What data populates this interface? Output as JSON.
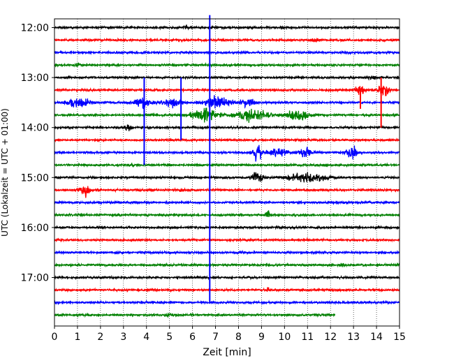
{
  "chart_data": {
    "type": "line",
    "subtype": "helicorder",
    "xlabel": "Zeit  [min]",
    "ylabel": "UTC (Lokalzeit = UTC + 01:00)",
    "xlim": [
      0,
      15
    ],
    "x_ticks": [
      "0",
      "1",
      "2",
      "3",
      "4",
      "5",
      "6",
      "7",
      "8",
      "9",
      "10",
      "11",
      "12",
      "13",
      "14",
      "15"
    ],
    "y_ticks": [
      "12:00",
      "13:00",
      "14:00",
      "15:00",
      "16:00",
      "17:00"
    ],
    "line_start_utc": [
      "12:00",
      "12:15",
      "12:30",
      "12:45",
      "13:00",
      "13:15",
      "13:30",
      "13:45",
      "14:00",
      "14:15",
      "14:30",
      "14:45",
      "15:00",
      "15:15",
      "15:30",
      "15:45",
      "16:00",
      "16:15",
      "16:30",
      "16:45",
      "17:00",
      "17:15",
      "17:30",
      "17:45"
    ],
    "line_colors": [
      "#000000",
      "#ff0000",
      "#0000ff",
      "#008000"
    ],
    "grid": true,
    "last_line_end_min": 12.2,
    "events": [
      {
        "line": 0,
        "at_min": 5.7,
        "amp": 0.5,
        "dur_min": 0.3
      },
      {
        "line": 1,
        "at_min": 11.3,
        "amp": 0.5,
        "dur_min": 0.4
      },
      {
        "line": 3,
        "at_min": 1.0,
        "amp": 0.4,
        "dur_min": 0.3
      },
      {
        "line": 4,
        "at_min": 13.8,
        "amp": 0.5,
        "dur_min": 0.4
      },
      {
        "line": 5,
        "at_min": 13.3,
        "amp": 1.6,
        "dur_min": 0.5
      },
      {
        "line": 5,
        "at_min": 14.3,
        "amp": 1.4,
        "dur_min": 0.6
      },
      {
        "line": 6,
        "at_min": 1.0,
        "amp": 1.0,
        "dur_min": 1.3
      },
      {
        "line": 6,
        "at_min": 3.8,
        "amp": 1.0,
        "dur_min": 1.0
      },
      {
        "line": 6,
        "at_min": 5.1,
        "amp": 1.0,
        "dur_min": 1.0
      },
      {
        "line": 6,
        "at_min": 7.1,
        "amp": 1.2,
        "dur_min": 1.6
      },
      {
        "line": 6,
        "at_min": 8.4,
        "amp": 0.8,
        "dur_min": 0.8
      },
      {
        "line": 7,
        "at_min": 6.5,
        "amp": 1.3,
        "dur_min": 1.5
      },
      {
        "line": 7,
        "at_min": 8.6,
        "amp": 1.3,
        "dur_min": 2.0
      },
      {
        "line": 7,
        "at_min": 10.6,
        "amp": 1.2,
        "dur_min": 1.4
      },
      {
        "line": 8,
        "at_min": 3.2,
        "amp": 0.6,
        "dur_min": 0.4
      },
      {
        "line": 10,
        "at_min": 8.8,
        "amp": 1.9,
        "dur_min": 0.6
      },
      {
        "line": 10,
        "at_min": 9.7,
        "amp": 0.9,
        "dur_min": 1.2
      },
      {
        "line": 10,
        "at_min": 10.9,
        "amp": 1.5,
        "dur_min": 0.6
      },
      {
        "line": 10,
        "at_min": 12.9,
        "amp": 1.8,
        "dur_min": 0.6
      },
      {
        "line": 11,
        "at_min": 3.3,
        "amp": 0.4,
        "dur_min": 0.3
      },
      {
        "line": 12,
        "at_min": 8.8,
        "amp": 1.2,
        "dur_min": 0.6
      },
      {
        "line": 12,
        "at_min": 11.0,
        "amp": 0.9,
        "dur_min": 2.4
      },
      {
        "line": 13,
        "at_min": 1.3,
        "amp": 1.3,
        "dur_min": 0.6
      },
      {
        "line": 13,
        "at_min": 5.5,
        "amp": 0.4,
        "dur_min": 0.3
      },
      {
        "line": 15,
        "at_min": 9.3,
        "amp": 1.0,
        "dur_min": 0.3
      },
      {
        "line": 19,
        "at_min": 12.5,
        "amp": 0.4,
        "dur_min": 0.4
      },
      {
        "line": 21,
        "at_min": 9.3,
        "amp": 0.5,
        "dur_min": 0.2
      },
      {
        "line": 23,
        "at_min": 5.0,
        "amp": 0.4,
        "dur_min": 0.4
      }
    ],
    "spikes": [
      {
        "min": 3.9,
        "line_from": 4.0,
        "line_to": 11.0,
        "color": "#0000ff"
      },
      {
        "min": 5.5,
        "line_from": 4.0,
        "line_to": 9.0,
        "color": "#0000ff"
      },
      {
        "min": 6.75,
        "line_from": -1.0,
        "line_to": 22.0,
        "color": "#0000ff"
      },
      {
        "min": 14.2,
        "line_from": 4.0,
        "line_to": 8.0,
        "color": "#ff0000"
      },
      {
        "min": 13.3,
        "line_from": 5.0,
        "line_to": 6.5,
        "color": "#ff0000"
      }
    ]
  }
}
